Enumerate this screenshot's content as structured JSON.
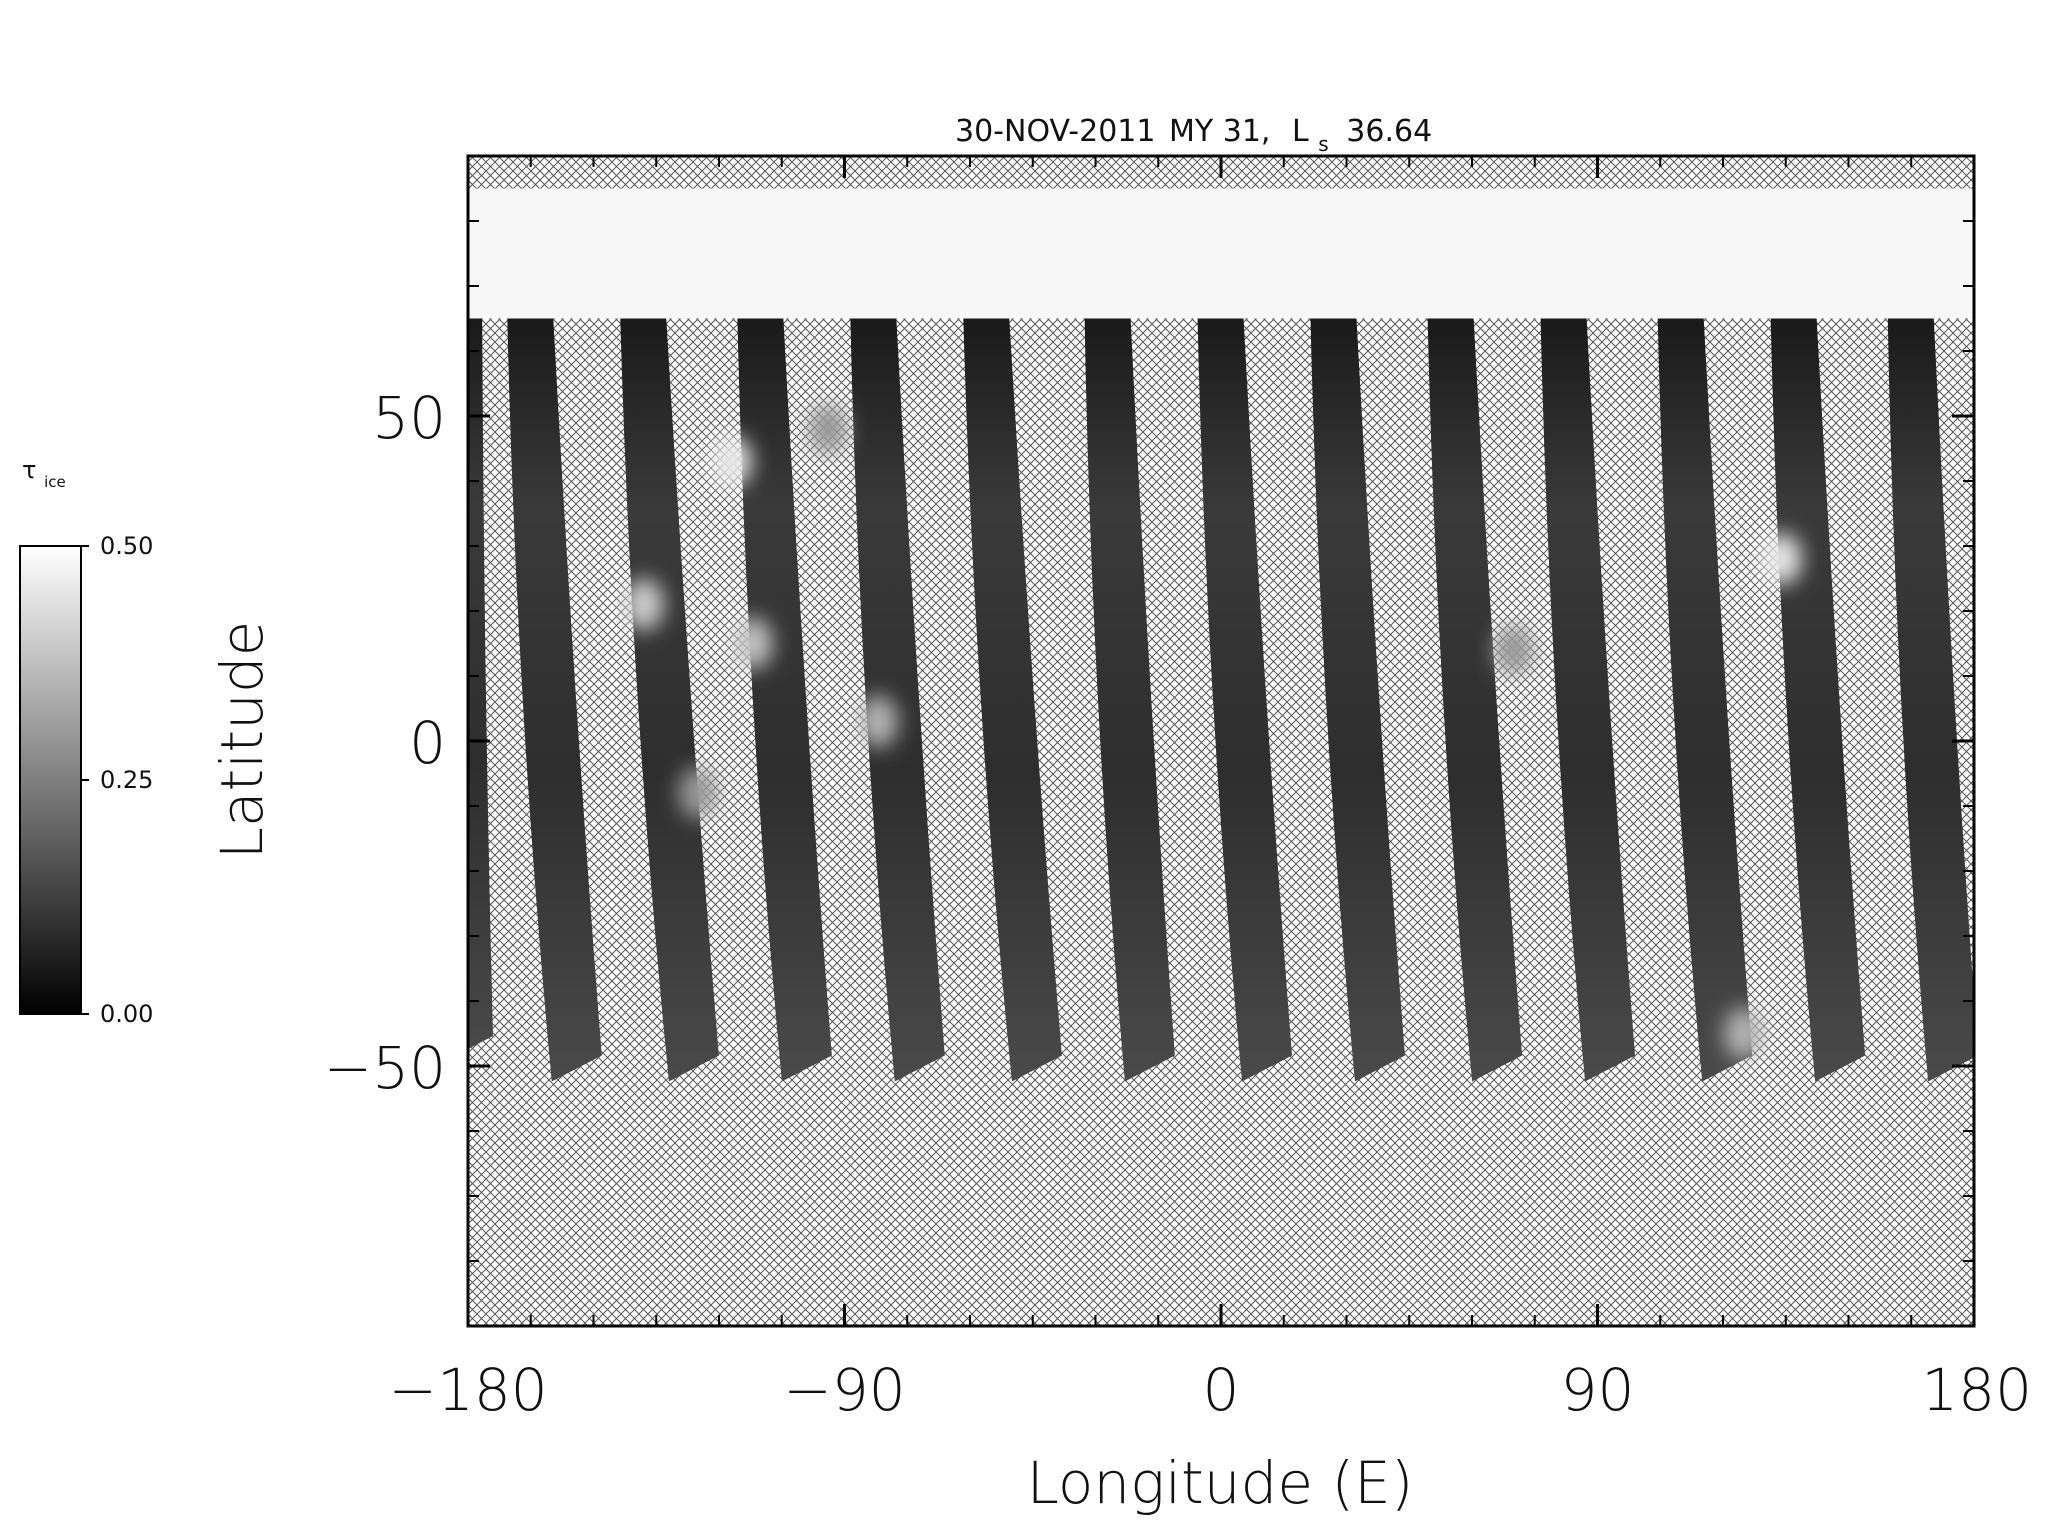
{
  "chart_data": {
    "type": "heatmap",
    "title_parts": {
      "date": "30-NOV-2011",
      "mars_year": "MY 31,",
      "ls_symbol": "L",
      "ls_subscript": "s",
      "ls_value": "36.64"
    },
    "xlabel": "Longitude (E)",
    "ylabel": "Latitude",
    "xlim": [
      -180,
      180
    ],
    "ylim": [
      -90,
      90
    ],
    "x_ticks": [
      -180,
      -90,
      0,
      90,
      180
    ],
    "x_tick_labels": [
      "−180",
      "−90",
      "0",
      "90",
      "180"
    ],
    "y_ticks": [
      50,
      0,
      -50
    ],
    "y_tick_labels": [
      "50",
      "0",
      "−50"
    ],
    "colorbar": {
      "label_symbol": "τ",
      "label_subscript": "ice",
      "range": [
        0.0,
        0.5
      ],
      "ticks": [
        0.5,
        0.25,
        0.0
      ],
      "tick_labels": [
        "0.50",
        "0.25",
        "0.00"
      ],
      "colormap": "grayscale"
    },
    "no_data_fill": "crosshatch",
    "north_cap_lat": [
      65,
      85
    ],
    "swaths": [
      {
        "lon_top": -179,
        "lon_bottom": -180,
        "lat_bottom": -50
      },
      {
        "lon_top": -162,
        "lon_bottom": -154,
        "lat_bottom": -53
      },
      {
        "lon_top": -135,
        "lon_bottom": -126,
        "lat_bottom": -53
      },
      {
        "lon_top": -107,
        "lon_bottom": -99,
        "lat_bottom": -53
      },
      {
        "lon_top": -80,
        "lon_bottom": -72,
        "lat_bottom": -53
      },
      {
        "lon_top": -53,
        "lon_bottom": -44,
        "lat_bottom": -53
      },
      {
        "lon_top": -24,
        "lon_bottom": -17,
        "lat_bottom": -53
      },
      {
        "lon_top": 3,
        "lon_bottom": 11,
        "lat_bottom": -53
      },
      {
        "lon_top": 30,
        "lon_bottom": 38,
        "lat_bottom": -53
      },
      {
        "lon_top": 58,
        "lon_bottom": 66,
        "lat_bottom": -53
      },
      {
        "lon_top": 85,
        "lon_bottom": 93,
        "lat_bottom": -53
      },
      {
        "lon_top": 113,
        "lon_bottom": 121,
        "lat_bottom": -53
      },
      {
        "lon_top": 140,
        "lon_bottom": 148,
        "lat_bottom": -53
      },
      {
        "lon_top": 168,
        "lon_bottom": 175,
        "lat_bottom": -53
      }
    ],
    "ice_patches": [
      {
        "lon": -117,
        "lat": 43,
        "tau": 0.45
      },
      {
        "lon": -138,
        "lat": 21,
        "tau": 0.4
      },
      {
        "lon": -112,
        "lat": 15,
        "tau": 0.38
      },
      {
        "lon": -82,
        "lat": 3,
        "tau": 0.35
      },
      {
        "lon": -94,
        "lat": 48,
        "tau": 0.3
      },
      {
        "lon": 134,
        "lat": 28,
        "tau": 0.45
      },
      {
        "lon": 70,
        "lat": 14,
        "tau": 0.3
      },
      {
        "lon": -125,
        "lat": -8,
        "tau": 0.3
      },
      {
        "lon": 125,
        "lat": -45,
        "tau": 0.35
      }
    ]
  }
}
